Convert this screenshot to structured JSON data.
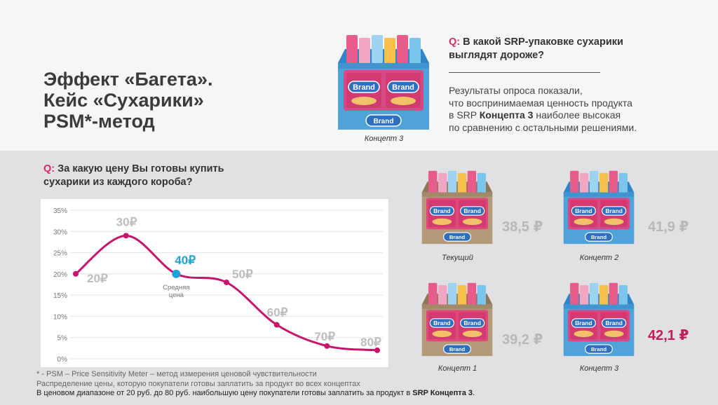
{
  "slide": {
    "title_lines": [
      "Эффект «Багета».",
      "Кейс «Сухарики»",
      "PSM*-метод"
    ],
    "q1": {
      "prefix": "Q:",
      "text_line1": "В какой SRP-упаковке сухарики",
      "text_line2": "выглядят дороже?"
    },
    "result_lines": [
      "Результаты опроса показали,",
      "что воспринимаемая ценность продукта",
      "в SRP ",
      "Концепта 3",
      " наиболее высокая",
      "по сравнению с остальными решениями."
    ],
    "q2": {
      "prefix": "Q:",
      "text_line1": "За какую цену Вы готовы купить",
      "text_line2": "сухарики из каждого короба?"
    },
    "top_package_caption": "Концепт 3",
    "packages": [
      {
        "caption": "Текущий",
        "price": "38,5 ₽",
        "box": "kraft"
      },
      {
        "caption": "Концепт 2",
        "price": "41,9 ₽",
        "box": "blue"
      },
      {
        "caption": "Концепт 1",
        "price": "39,2 ₽",
        "box": "kraft"
      },
      {
        "caption": "Концепт 3",
        "price": "42,1 ₽",
        "box": "blue",
        "highlight": true
      }
    ],
    "brand_text": "Brand",
    "brand_sub": "двойной",
    "footnotes": {
      "line1": "* - PSM – Price Sensitivity Meter – метод измерения ценовой чувствительности",
      "line2": "Распределение цены, которую покупатели готовы заплатить за продукт во всех концептах",
      "line3_pre": "В ценовом диапазоне от 20 руб. до 80 руб. наибольшую цену покупатели готовы заплатить за продукт в ",
      "line3_bold": "SRP Концепта 3",
      "line3_post": "."
    }
  },
  "colors": {
    "accent": "#d62a6a",
    "line": "#c8146a",
    "highlight_point": "#1aa3d6",
    "price_grey": "#b8b8b8",
    "price_highlight": "#c21f5a",
    "box_blue": "#4fa3d9",
    "box_kraft": "#b39a78",
    "box_top_blue": "#2e86c7"
  },
  "chart_data": {
    "type": "line",
    "y_ticks": [
      "35%",
      "30%",
      "25%",
      "20%",
      "15%",
      "10%",
      "5%",
      "0%"
    ],
    "ylim": [
      0,
      35
    ],
    "x_range": [
      20,
      80
    ],
    "series": [
      {
        "points": [
          {
            "x": 20,
            "y": 20,
            "label": "20₽"
          },
          {
            "x": 30,
            "y": 29,
            "label": "30₽"
          },
          {
            "x": 40,
            "y": 20,
            "label": "40₽",
            "highlight": true
          },
          {
            "x": 50,
            "y": 18,
            "label": "50₽"
          },
          {
            "x": 60,
            "y": 8,
            "label": "60₽"
          },
          {
            "x": 70,
            "y": 3,
            "label": "70₽"
          },
          {
            "x": 80,
            "y": 2,
            "label": "80₽"
          }
        ]
      }
    ],
    "annotation": {
      "line1": "Средняя",
      "line2": "цена"
    }
  }
}
